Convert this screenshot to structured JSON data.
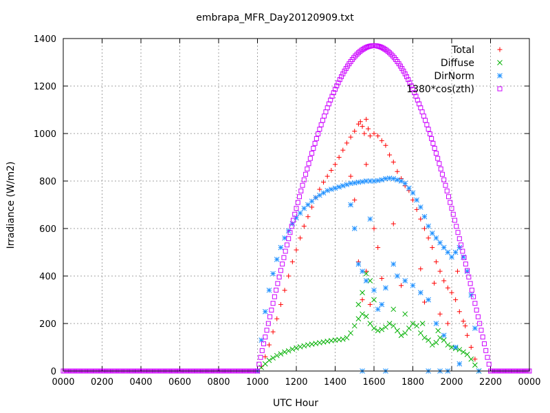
{
  "chart_data": {
    "type": "scatter",
    "title": "embrapa_MFR_Day20120909.txt",
    "xlabel": "UTC Hour",
    "ylabel": "Irradiance (W/m2)",
    "xlim": [
      0,
      24
    ],
    "ylim": [
      0,
      1400
    ],
    "x_ticks": [
      0,
      2,
      4,
      6,
      8,
      10,
      12,
      14,
      16,
      18,
      20,
      22,
      24
    ],
    "x_tick_labels": [
      "0000",
      "0200",
      "0400",
      "0600",
      "0800",
      "1000",
      "1200",
      "1400",
      "1600",
      "1800",
      "2000",
      "2200",
      "0000"
    ],
    "y_ticks": [
      0,
      200,
      400,
      600,
      800,
      1000,
      1200,
      1400
    ],
    "y_tick_labels": [
      "0",
      "200",
      "400",
      "600",
      "800",
      "1000",
      "1200",
      "1400"
    ],
    "grid": true,
    "legend_position": "top-right",
    "series": [
      {
        "name": "Total",
        "marker": "+",
        "color": "#ff0000",
        "points": [
          [
            10.0,
            0
          ],
          [
            10.2,
            20
          ],
          [
            10.4,
            60
          ],
          [
            10.6,
            110
          ],
          [
            10.8,
            165
          ],
          [
            11.0,
            220
          ],
          [
            11.2,
            280
          ],
          [
            11.4,
            340
          ],
          [
            11.6,
            400
          ],
          [
            11.8,
            460
          ],
          [
            12.0,
            510
          ],
          [
            12.2,
            560
          ],
          [
            12.4,
            610
          ],
          [
            12.6,
            650
          ],
          [
            12.8,
            690
          ],
          [
            13.0,
            730
          ],
          [
            13.2,
            765
          ],
          [
            13.4,
            795
          ],
          [
            13.6,
            820
          ],
          [
            13.8,
            845
          ],
          [
            14.0,
            870
          ],
          [
            14.2,
            900
          ],
          [
            14.4,
            930
          ],
          [
            14.6,
            960
          ],
          [
            14.8,
            985
          ],
          [
            15.0,
            1010
          ],
          [
            15.2,
            1040
          ],
          [
            15.3,
            1050
          ],
          [
            15.4,
            1030
          ],
          [
            15.5,
            1000
          ],
          [
            15.6,
            1060
          ],
          [
            15.7,
            1020
          ],
          [
            15.8,
            990
          ],
          [
            16.0,
            1000
          ],
          [
            16.2,
            990
          ],
          [
            16.4,
            970
          ],
          [
            16.6,
            950
          ],
          [
            16.8,
            910
          ],
          [
            17.0,
            880
          ],
          [
            17.2,
            840
          ],
          [
            17.4,
            810
          ],
          [
            17.6,
            780
          ],
          [
            17.8,
            760
          ],
          [
            18.0,
            720
          ],
          [
            18.2,
            680
          ],
          [
            18.4,
            640
          ],
          [
            18.6,
            600
          ],
          [
            18.8,
            560
          ],
          [
            19.0,
            520
          ],
          [
            19.2,
            460
          ],
          [
            19.4,
            420
          ],
          [
            19.6,
            380
          ],
          [
            19.8,
            350
          ],
          [
            20.0,
            330
          ],
          [
            20.2,
            300
          ],
          [
            20.4,
            250
          ],
          [
            20.6,
            210
          ],
          [
            20.8,
            150
          ],
          [
            21.0,
            100
          ],
          [
            21.2,
            50
          ],
          [
            21.4,
            0
          ],
          [
            15.2,
            460
          ],
          [
            15.4,
            300
          ],
          [
            15.6,
            420
          ],
          [
            15.8,
            280
          ],
          [
            16.0,
            600
          ],
          [
            16.2,
            520
          ],
          [
            16.4,
            390
          ],
          [
            17.0,
            620
          ],
          [
            17.4,
            360
          ],
          [
            18.4,
            430
          ],
          [
            18.6,
            290
          ],
          [
            19.1,
            370
          ],
          [
            19.4,
            240
          ],
          [
            19.8,
            200
          ],
          [
            20.3,
            420
          ],
          [
            20.7,
            190
          ],
          [
            15.0,
            720
          ],
          [
            15.6,
            870
          ],
          [
            14.8,
            820
          ]
        ]
      },
      {
        "name": "Diffuse",
        "marker": "x",
        "color": "#00b000",
        "points": [
          [
            10.0,
            0
          ],
          [
            10.2,
            15
          ],
          [
            10.4,
            30
          ],
          [
            10.6,
            45
          ],
          [
            10.8,
            55
          ],
          [
            11.0,
            65
          ],
          [
            11.2,
            72
          ],
          [
            11.4,
            80
          ],
          [
            11.6,
            85
          ],
          [
            11.8,
            92
          ],
          [
            12.0,
            97
          ],
          [
            12.2,
            102
          ],
          [
            12.4,
            106
          ],
          [
            12.6,
            110
          ],
          [
            12.8,
            113
          ],
          [
            13.0,
            116
          ],
          [
            13.2,
            119
          ],
          [
            13.4,
            122
          ],
          [
            13.6,
            125
          ],
          [
            13.8,
            128
          ],
          [
            14.0,
            130
          ],
          [
            14.2,
            132
          ],
          [
            14.4,
            134
          ],
          [
            14.6,
            140
          ],
          [
            14.8,
            160
          ],
          [
            15.0,
            190
          ],
          [
            15.2,
            220
          ],
          [
            15.4,
            240
          ],
          [
            15.6,
            230
          ],
          [
            15.8,
            200
          ],
          [
            16.0,
            180
          ],
          [
            16.2,
            170
          ],
          [
            16.4,
            175
          ],
          [
            16.6,
            185
          ],
          [
            16.8,
            200
          ],
          [
            17.0,
            190
          ],
          [
            17.2,
            170
          ],
          [
            17.4,
            150
          ],
          [
            17.6,
            160
          ],
          [
            17.8,
            180
          ],
          [
            18.0,
            200
          ],
          [
            18.2,
            190
          ],
          [
            18.4,
            160
          ],
          [
            18.6,
            140
          ],
          [
            18.8,
            130
          ],
          [
            19.0,
            110
          ],
          [
            19.2,
            120
          ],
          [
            19.4,
            140
          ],
          [
            19.6,
            130
          ],
          [
            19.8,
            110
          ],
          [
            20.0,
            100
          ],
          [
            20.2,
            95
          ],
          [
            20.4,
            90
          ],
          [
            20.6,
            80
          ],
          [
            20.8,
            70
          ],
          [
            21.0,
            50
          ],
          [
            21.2,
            25
          ],
          [
            21.4,
            0
          ],
          [
            15.2,
            280
          ],
          [
            15.4,
            330
          ],
          [
            15.6,
            410
          ],
          [
            15.8,
            380
          ],
          [
            16.0,
            300
          ],
          [
            17.0,
            260
          ],
          [
            17.6,
            240
          ],
          [
            18.5,
            200
          ],
          [
            19.3,
            170
          ]
        ]
      },
      {
        "name": "DirNorm",
        "marker": "*",
        "color": "#1e90ff",
        "points": [
          [
            10.0,
            0
          ],
          [
            10.2,
            130
          ],
          [
            10.4,
            250
          ],
          [
            10.6,
            340
          ],
          [
            10.8,
            410
          ],
          [
            11.0,
            470
          ],
          [
            11.2,
            520
          ],
          [
            11.4,
            560
          ],
          [
            11.6,
            590
          ],
          [
            11.8,
            620
          ],
          [
            12.0,
            645
          ],
          [
            12.2,
            665
          ],
          [
            12.4,
            685
          ],
          [
            12.6,
            700
          ],
          [
            12.8,
            715
          ],
          [
            13.0,
            730
          ],
          [
            13.2,
            740
          ],
          [
            13.4,
            750
          ],
          [
            13.6,
            760
          ],
          [
            13.8,
            765
          ],
          [
            14.0,
            770
          ],
          [
            14.2,
            775
          ],
          [
            14.4,
            780
          ],
          [
            14.6,
            785
          ],
          [
            14.8,
            790
          ],
          [
            15.0,
            792
          ],
          [
            15.2,
            795
          ],
          [
            15.4,
            797
          ],
          [
            15.6,
            800
          ],
          [
            15.8,
            800
          ],
          [
            16.0,
            800
          ],
          [
            16.2,
            802
          ],
          [
            16.4,
            805
          ],
          [
            16.6,
            810
          ],
          [
            16.8,
            812
          ],
          [
            17.0,
            810
          ],
          [
            17.2,
            805
          ],
          [
            17.4,
            800
          ],
          [
            17.6,
            790
          ],
          [
            17.8,
            770
          ],
          [
            18.0,
            750
          ],
          [
            18.2,
            720
          ],
          [
            18.4,
            690
          ],
          [
            18.6,
            650
          ],
          [
            18.8,
            610
          ],
          [
            19.0,
            580
          ],
          [
            19.2,
            560
          ],
          [
            19.4,
            540
          ],
          [
            19.6,
            520
          ],
          [
            19.8,
            500
          ],
          [
            20.0,
            480
          ],
          [
            20.2,
            500
          ],
          [
            20.4,
            520
          ],
          [
            20.6,
            480
          ],
          [
            20.8,
            420
          ],
          [
            21.0,
            320
          ],
          [
            21.2,
            180
          ],
          [
            21.4,
            0
          ],
          [
            14.8,
            700
          ],
          [
            15.0,
            600
          ],
          [
            15.2,
            450
          ],
          [
            15.4,
            420
          ],
          [
            15.6,
            380
          ],
          [
            15.8,
            640
          ],
          [
            16.0,
            340
          ],
          [
            16.2,
            260
          ],
          [
            16.4,
            280
          ],
          [
            16.6,
            350
          ],
          [
            17.0,
            450
          ],
          [
            17.2,
            400
          ],
          [
            17.6,
            380
          ],
          [
            18.0,
            360
          ],
          [
            18.4,
            330
          ],
          [
            18.8,
            300
          ],
          [
            19.2,
            200
          ],
          [
            19.6,
            150
          ],
          [
            20.2,
            100
          ],
          [
            15.4,
            0
          ],
          [
            16.6,
            0
          ],
          [
            18.8,
            0
          ],
          [
            19.4,
            0
          ],
          [
            19.8,
            0
          ],
          [
            20.4,
            30
          ]
        ]
      },
      {
        "name": "1380*cos(zth)",
        "marker": "square",
        "color": "#cc00ff",
        "curve": {
          "peak_x": 16.0,
          "peak_y": 1370,
          "zero_start": 10.0,
          "zero_end": 22.0
        }
      }
    ]
  }
}
